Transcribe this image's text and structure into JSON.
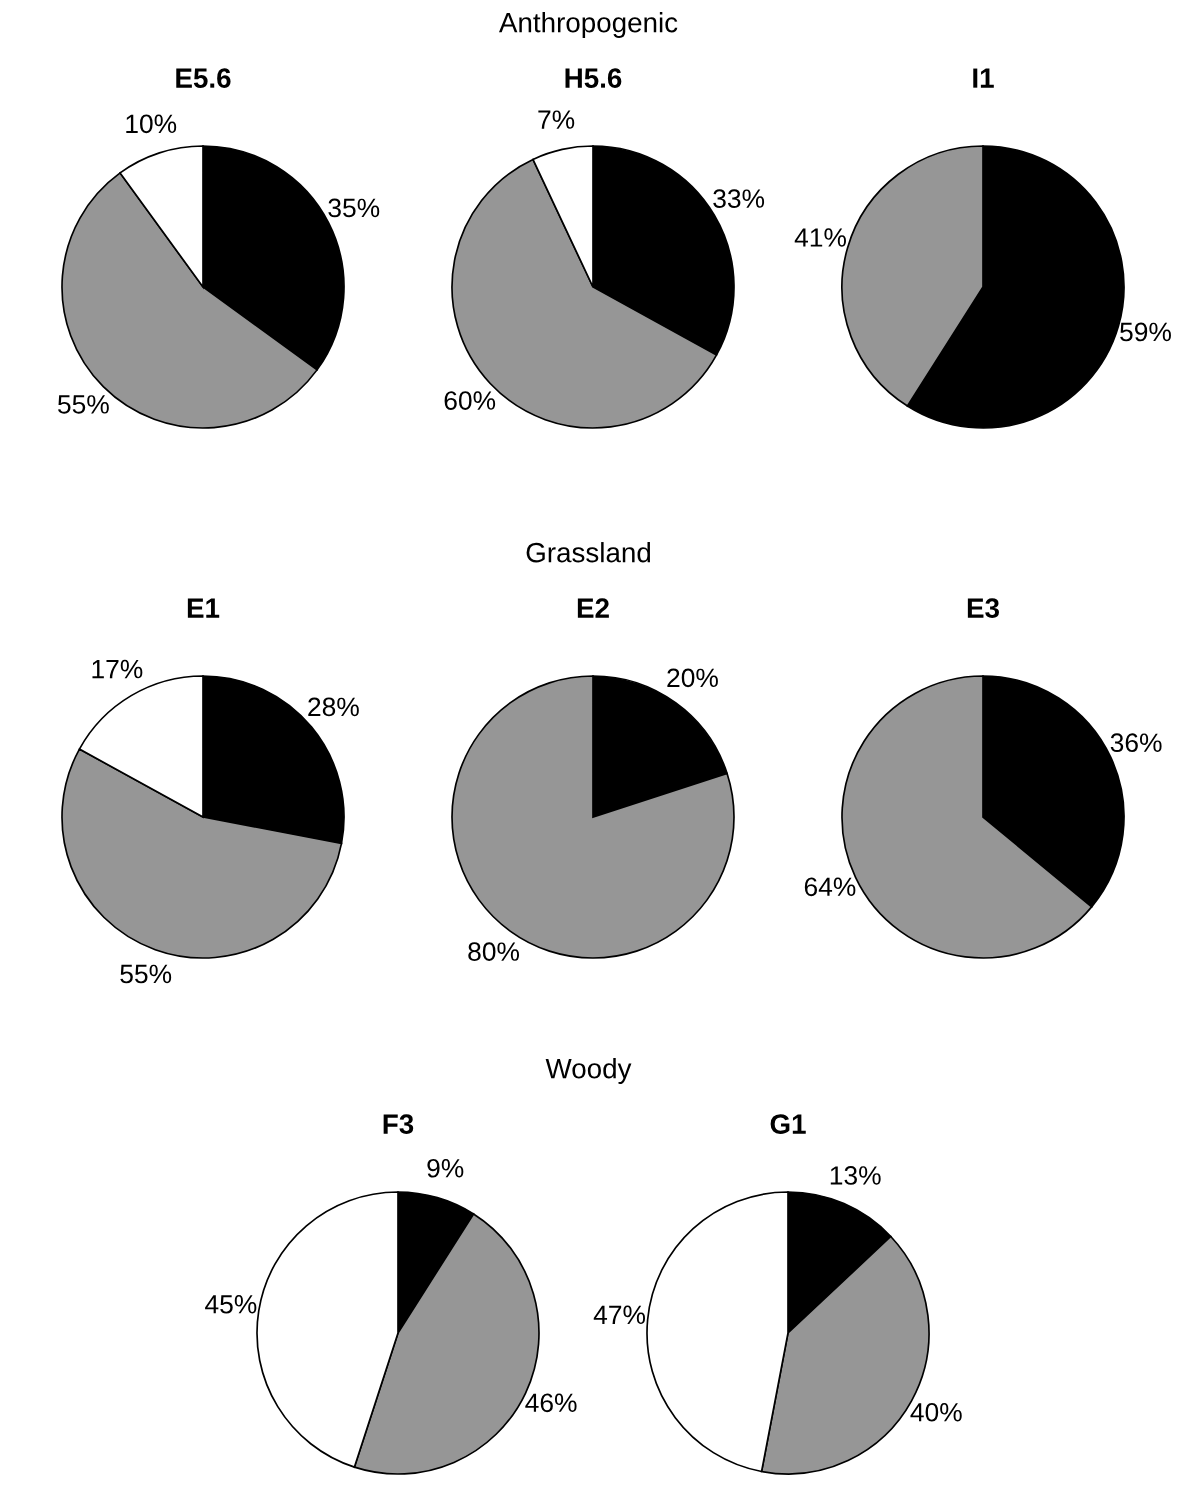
{
  "chart_data": [
    {
      "type": "other",
      "title": "Anthropogenic"
    },
    {
      "type": "pie",
      "title": "E5.6",
      "categories": [
        null,
        null,
        null
      ],
      "values": [
        35,
        55,
        10
      ],
      "colors": [
        "#000000",
        "#969696",
        "#ffffff"
      ],
      "value_labels": [
        "35%",
        "55%",
        "10%"
      ]
    },
    {
      "type": "pie",
      "title": "H5.6",
      "categories": [
        null,
        null,
        null
      ],
      "values": [
        33,
        60,
        7
      ],
      "colors": [
        "#000000",
        "#969696",
        "#ffffff"
      ],
      "value_labels": [
        "33%",
        "60%",
        "7%"
      ]
    },
    {
      "type": "pie",
      "title": "I1",
      "categories": [
        null,
        null
      ],
      "values": [
        59,
        41
      ],
      "colors": [
        "#000000",
        "#969696"
      ],
      "value_labels": [
        "59%",
        "41%"
      ]
    },
    {
      "type": "other",
      "title": "Grassland"
    },
    {
      "type": "pie",
      "title": "E1",
      "categories": [
        null,
        null,
        null
      ],
      "values": [
        28,
        55,
        17
      ],
      "colors": [
        "#000000",
        "#969696",
        "#ffffff"
      ],
      "value_labels": [
        "28%",
        "55%",
        "17%"
      ]
    },
    {
      "type": "pie",
      "title": "E2",
      "categories": [
        null,
        null
      ],
      "values": [
        20,
        80
      ],
      "colors": [
        "#000000",
        "#969696"
      ],
      "value_labels": [
        "20%",
        "80%"
      ]
    },
    {
      "type": "pie",
      "title": "E3",
      "categories": [
        null,
        null
      ],
      "values": [
        36,
        64
      ],
      "colors": [
        "#000000",
        "#969696"
      ],
      "value_labels": [
        "36%",
        "64%"
      ]
    },
    {
      "type": "other",
      "title": "Woody"
    },
    {
      "type": "pie",
      "title": "F3",
      "categories": [
        null,
        null,
        null
      ],
      "values": [
        9,
        46,
        45
      ],
      "colors": [
        "#000000",
        "#969696",
        "#ffffff"
      ],
      "value_labels": [
        "9%",
        "46%",
        "45%"
      ]
    },
    {
      "type": "pie",
      "title": "G1",
      "categories": [
        null,
        null,
        null
      ],
      "values": [
        13,
        40,
        47
      ],
      "colors": [
        "#000000",
        "#969696",
        "#ffffff"
      ],
      "value_labels": [
        "13%",
        "40%",
        "47%"
      ]
    }
  ]
}
